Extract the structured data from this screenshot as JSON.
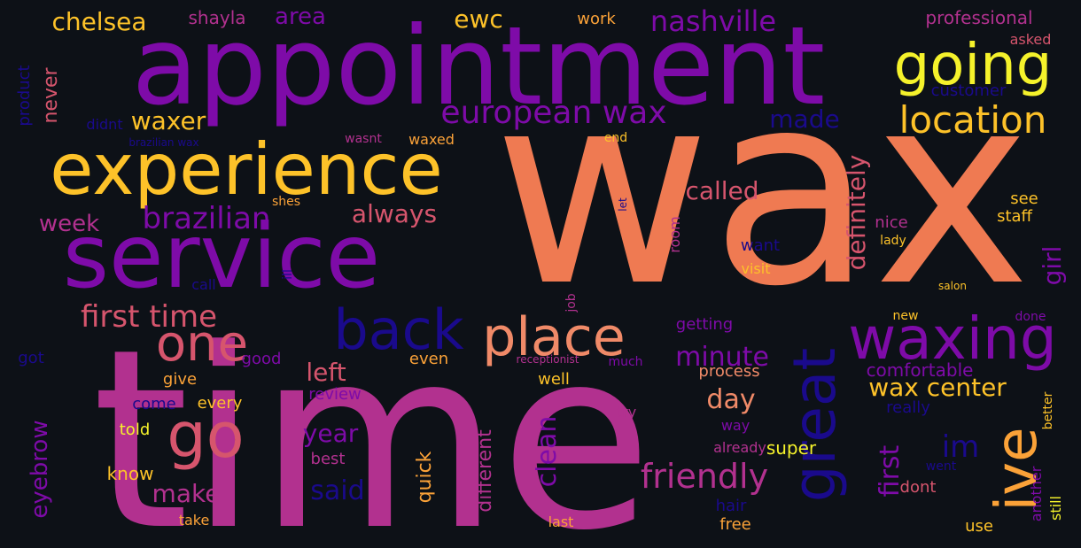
{
  "words": [
    {
      "text": "wax",
      "color": "#ef7a52",
      "rotated": false
    },
    {
      "text": "time",
      "color": "#b2318f",
      "rotated": false
    },
    {
      "text": "appointment",
      "color": "#7e0ba8",
      "rotated": false
    },
    {
      "text": "service",
      "color": "#7e0ba8",
      "rotated": false
    },
    {
      "text": "experience",
      "color": "#fdc229",
      "rotated": false
    },
    {
      "text": "going",
      "color": "#f5f22b",
      "rotated": false
    },
    {
      "text": "waxing",
      "color": "#7e0ba8",
      "rotated": false
    },
    {
      "text": "great",
      "color": "#1a0a8c",
      "rotated": true
    },
    {
      "text": "ive",
      "color": "#fba238",
      "rotated": true
    },
    {
      "text": "place",
      "color": "#f08a68",
      "rotated": false
    },
    {
      "text": "back",
      "color": "#1a0a8c",
      "rotated": false
    },
    {
      "text": "go",
      "color": "#d6556d",
      "rotated": false
    },
    {
      "text": "one",
      "color": "#d6556d",
      "rotated": false
    },
    {
      "text": "location",
      "color": "#fdc229",
      "rotated": false
    },
    {
      "text": "european wax",
      "color": "#7e0ba8",
      "rotated": false
    },
    {
      "text": "first time",
      "color": "#d6556d",
      "rotated": false
    },
    {
      "text": "brazilian",
      "color": "#7e0ba8",
      "rotated": false
    },
    {
      "text": "friendly",
      "color": "#b2318f",
      "rotated": false
    },
    {
      "text": "nashville",
      "color": "#7e0ba8",
      "rotated": false
    },
    {
      "text": "chelsea",
      "color": "#fdc229",
      "rotated": false
    },
    {
      "text": "waxer",
      "color": "#fdc229",
      "rotated": false
    },
    {
      "text": "always",
      "color": "#d6556d",
      "rotated": false
    },
    {
      "text": "called",
      "color": "#d6556d",
      "rotated": false
    },
    {
      "text": "definitely",
      "color": "#d6556d",
      "rotated": true
    },
    {
      "text": "wax center",
      "color": "#fdc229",
      "rotated": false
    },
    {
      "text": "minute",
      "color": "#7e0ba8",
      "rotated": false
    },
    {
      "text": "clean",
      "color": "#7e0ba8",
      "rotated": true
    },
    {
      "text": "first",
      "color": "#7e0ba8",
      "rotated": true
    },
    {
      "text": "day",
      "color": "#f08a68",
      "rotated": false
    },
    {
      "text": "year",
      "color": "#7e0ba8",
      "rotated": false
    },
    {
      "text": "said",
      "color": "#1a0a8c",
      "rotated": false
    },
    {
      "text": "make",
      "color": "#b2318f",
      "rotated": false
    },
    {
      "text": "left",
      "color": "#d6556d",
      "rotated": false
    },
    {
      "text": "im",
      "color": "#1a0a8c",
      "rotated": false
    },
    {
      "text": "girl",
      "color": "#7e0ba8",
      "rotated": true
    },
    {
      "text": "made",
      "color": "#1a0a8c",
      "rotated": false
    },
    {
      "text": "week",
      "color": "#b2318f",
      "rotated": false
    },
    {
      "text": "eyebrow",
      "color": "#7e0ba8",
      "rotated": true
    },
    {
      "text": "ewc",
      "color": "#fdc229",
      "rotated": false
    },
    {
      "text": "area",
      "color": "#7e0ba8",
      "rotated": false
    },
    {
      "text": "never",
      "color": "#d6556d",
      "rotated": true
    },
    {
      "text": "shayla",
      "color": "#b2318f",
      "rotated": false
    },
    {
      "text": "work",
      "color": "#fba238",
      "rotated": false
    },
    {
      "text": "professional",
      "color": "#b2318f",
      "rotated": false
    },
    {
      "text": "asked",
      "color": "#d6556d",
      "rotated": false
    },
    {
      "text": "customer",
      "color": "#1a0a8c",
      "rotated": false
    },
    {
      "text": "product",
      "color": "#1a0a8c",
      "rotated": true
    },
    {
      "text": "didnt",
      "color": "#1a0a8c",
      "rotated": false
    },
    {
      "text": "brazilian wax",
      "color": "#1a0a8c",
      "rotated": false
    },
    {
      "text": "wasnt",
      "color": "#b2318f",
      "rotated": false
    },
    {
      "text": "waxed",
      "color": "#fba238",
      "rotated": false
    },
    {
      "text": "end",
      "color": "#fdc229",
      "rotated": false
    },
    {
      "text": "shes",
      "color": "#fba238",
      "rotated": false
    },
    {
      "text": "let",
      "color": "#1a0a8c",
      "rotated": true
    },
    {
      "text": "see",
      "color": "#fdc229",
      "rotated": false
    },
    {
      "text": "staff",
      "color": "#fdc229",
      "rotated": false
    },
    {
      "text": "nice",
      "color": "#b2318f",
      "rotated": false
    },
    {
      "text": "lady",
      "color": "#fdc229",
      "rotated": false
    },
    {
      "text": "want",
      "color": "#1a0a8c",
      "rotated": false
    },
    {
      "text": "room",
      "color": "#b2318f",
      "rotated": true
    },
    {
      "text": "visit",
      "color": "#fdc229",
      "rotated": false
    },
    {
      "text": "salon",
      "color": "#fdc229",
      "rotated": false
    },
    {
      "text": "call",
      "color": "#1a0a8c",
      "rotated": false
    },
    {
      "text": "ill",
      "color": "#1a0a8c",
      "rotated": true
    },
    {
      "text": "job",
      "color": "#b2318f",
      "rotated": true
    },
    {
      "text": "getting",
      "color": "#7e0ba8",
      "rotated": false
    },
    {
      "text": "new",
      "color": "#fdc229",
      "rotated": false
    },
    {
      "text": "done",
      "color": "#7e0ba8",
      "rotated": false
    },
    {
      "text": "got",
      "color": "#1a0a8c",
      "rotated": false
    },
    {
      "text": "good",
      "color": "#7e0ba8",
      "rotated": false
    },
    {
      "text": "even",
      "color": "#fba238",
      "rotated": false
    },
    {
      "text": "receptionist",
      "color": "#b2318f",
      "rotated": false
    },
    {
      "text": "much",
      "color": "#7e0ba8",
      "rotated": false
    },
    {
      "text": "comfortable",
      "color": "#7e0ba8",
      "rotated": false
    },
    {
      "text": "give",
      "color": "#fba238",
      "rotated": false
    },
    {
      "text": "review",
      "color": "#7e0ba8",
      "rotated": false
    },
    {
      "text": "well",
      "color": "#fdc229",
      "rotated": false
    },
    {
      "text": "process",
      "color": "#f08a68",
      "rotated": false
    },
    {
      "text": "really",
      "color": "#1a0a8c",
      "rotated": false
    },
    {
      "text": "come",
      "color": "#1a0a8c",
      "rotated": false
    },
    {
      "text": "every",
      "color": "#fdc229",
      "rotated": false
    },
    {
      "text": "try",
      "color": "#b2318f",
      "rotated": false
    },
    {
      "text": "way",
      "color": "#7e0ba8",
      "rotated": false
    },
    {
      "text": "better",
      "color": "#fdc229",
      "rotated": true
    },
    {
      "text": "told",
      "color": "#f5f22b",
      "rotated": false
    },
    {
      "text": "already",
      "color": "#b2318f",
      "rotated": false
    },
    {
      "text": "super",
      "color": "#f5f22b",
      "rotated": false
    },
    {
      "text": "went",
      "color": "#1a0a8c",
      "rotated": false
    },
    {
      "text": "know",
      "color": "#fdc229",
      "rotated": false
    },
    {
      "text": "best",
      "color": "#b2318f",
      "rotated": false
    },
    {
      "text": "quick",
      "color": "#fba238",
      "rotated": true
    },
    {
      "text": "different",
      "color": "#b2318f",
      "rotated": true
    },
    {
      "text": "dont",
      "color": "#d6556d",
      "rotated": false
    },
    {
      "text": "another",
      "color": "#7e0ba8",
      "rotated": true
    },
    {
      "text": "still",
      "color": "#f5f22b",
      "rotated": true
    },
    {
      "text": "hair",
      "color": "#1a0a8c",
      "rotated": false
    },
    {
      "text": "take",
      "color": "#fba238",
      "rotated": false
    },
    {
      "text": "last",
      "color": "#fba238",
      "rotated": false
    },
    {
      "text": "free",
      "color": "#fba238",
      "rotated": false
    },
    {
      "text": "use",
      "color": "#fdc229",
      "rotated": false
    }
  ]
}
